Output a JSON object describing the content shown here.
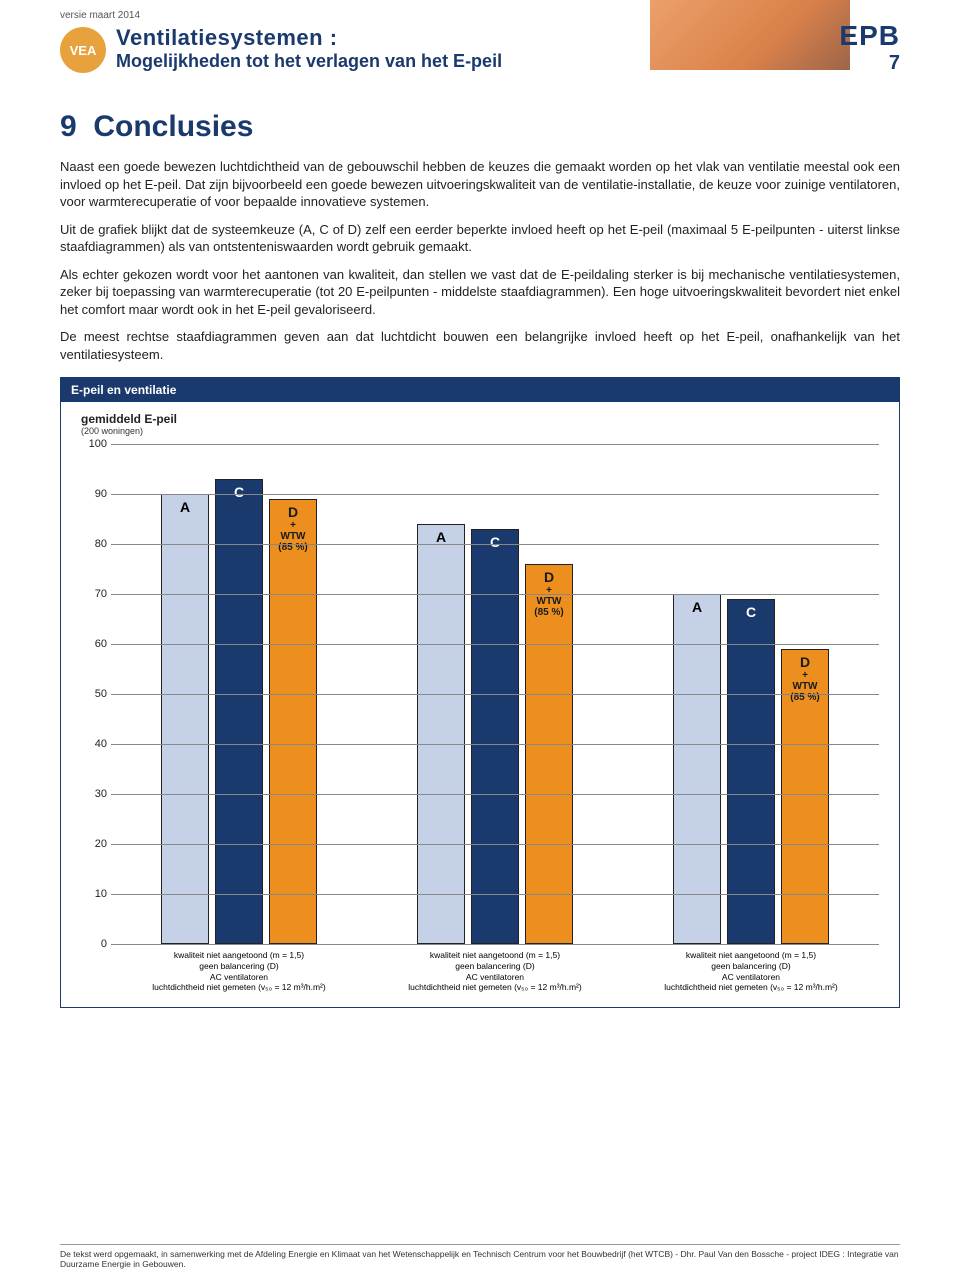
{
  "header": {
    "version": "versie maart 2014",
    "badge": "VEA",
    "title1": "Ventilatiesystemen :",
    "title2": "Mogelijkheden tot het verlagen van het E-peil",
    "epb": "EPB",
    "page": "7"
  },
  "section": {
    "number": "9",
    "title": "Conclusies"
  },
  "paragraphs": [
    "Naast een goede bewezen luchtdichtheid van de gebouwschil hebben de keuzes die gemaakt worden op het vlak van ventilatie meestal ook een invloed op het E-peil. Dat zijn bijvoorbeeld een goede bewezen uitvoeringskwaliteit van de ventilatie-installatie, de keuze voor zuinige ventilatoren, voor warmterecuperatie of voor bepaalde innovatieve systemen.",
    "Uit de grafiek blijkt dat de systeemkeuze (A, C of D) zelf een eerder beperkte invloed heeft op het E-peil (maximaal 5 E-peilpunten - uiterst linkse staafdiagrammen) als van ontstenteniswaarden wordt gebruik gemaakt.",
    "Als echter gekozen wordt voor het aantonen van kwaliteit, dan stellen we vast dat de E-peildaling sterker is bij mechanische ventilatiesystemen, zeker bij toepassing van warmterecuperatie (tot 20 E-peilpunten - middelste staafdiagrammen). Een hoge uitvoeringskwaliteit bevordert niet enkel het comfort maar wordt ook in het E-peil gevaloriseerd.",
    "De meest rechtse staafdiagrammen geven aan dat luchtdicht bouwen een belangrijke invloed heeft op het E-peil, onafhankelijk van het ventilatiesysteem."
  ],
  "chart": {
    "header": "E-peil en ventilatie",
    "subtitle": "gemiddeld E-peil",
    "subtitle2": "(200 woningen)",
    "ylim": [
      0,
      100
    ],
    "ytick_step": 10,
    "gridline_color": "#888888",
    "background": "#ffffff",
    "bar_styles": {
      "A": {
        "fill": "#c4d1e6",
        "text": "#000000"
      },
      "C": {
        "fill": "#1a3a6e",
        "text": "#ffffff"
      },
      "D": {
        "fill": "#ec8f1e",
        "text": "#1a1a1a",
        "sub1": "+",
        "sub2": "WTW",
        "sub3": "(85 %)"
      }
    },
    "groups": [
      {
        "A": 90,
        "C": 93,
        "D": 89
      },
      {
        "A": 84,
        "C": 83,
        "D": 76
      },
      {
        "A": 70,
        "C": 69,
        "D": 59
      }
    ],
    "xlabels": [
      "kwaliteit niet aangetoond (m = 1,5)\ngeen balancering (D)\nAC ventilatoren\nluchtdichtheid niet gemeten (v₅₀ = 12 m³/h.m²)",
      "kwaliteit niet aangetoond (m = 1,5)\ngeen balancering (D)\nAC ventilatoren\nluchtdichtheid niet gemeten (v₅₀ = 12 m³/h.m²)",
      "kwaliteit niet aangetoond (m = 1,5)\ngeen balancering (D)\nAC ventilatoren\nluchtdichtheid niet gemeten (v₅₀ = 12 m³/h.m²)"
    ]
  },
  "footer": "De tekst werd opgemaakt, in samenwerking met de Afdeling Energie en Klimaat van het Wetenschappelijk en Technisch Centrum voor het Bouwbedrijf (het WTCB) - Dhr. Paul Van den Bossche - project IDEG : Integratie van Duurzame Energie in Gebouwen."
}
